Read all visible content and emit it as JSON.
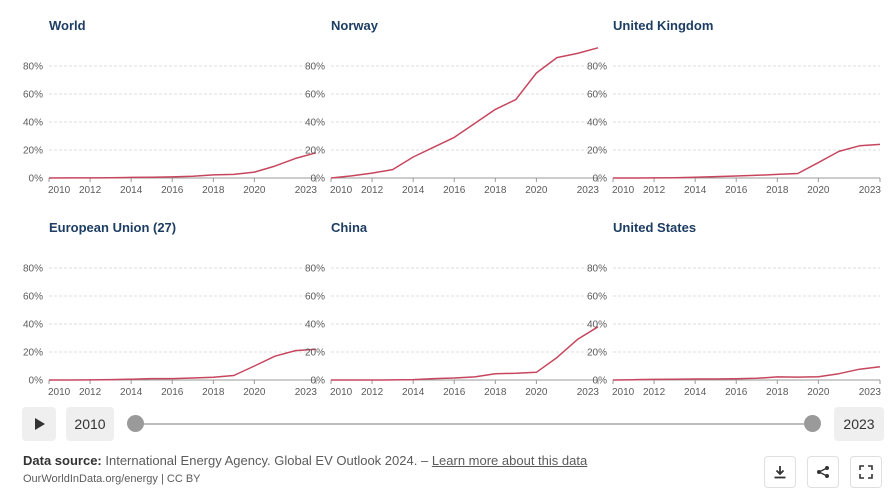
{
  "chart_data": {
    "type": "line",
    "layout": "small-multiples",
    "y_ticks": [
      "0%",
      "20%",
      "40%",
      "60%",
      "80%"
    ],
    "ylim": [
      0,
      90
    ],
    "x_ticks": [
      "2010",
      "2012",
      "2014",
      "2016",
      "2018",
      "2020",
      "2023"
    ],
    "xlim": [
      2010,
      2023
    ],
    "grid": true,
    "line_color": "#c6465e",
    "panels": [
      {
        "title": "World",
        "x": [
          2010,
          2011,
          2012,
          2013,
          2014,
          2015,
          2016,
          2017,
          2018,
          2019,
          2020,
          2021,
          2022,
          2023
        ],
        "values": [
          0,
          0.1,
          0.1,
          0.2,
          0.4,
          0.6,
          0.8,
          1.3,
          2.2,
          2.6,
          4.2,
          8.5,
          14,
          18
        ]
      },
      {
        "title": "Norway",
        "x": [
          2010,
          2011,
          2012,
          2013,
          2014,
          2015,
          2016,
          2017,
          2018,
          2019,
          2020,
          2021,
          2022,
          2023
        ],
        "values": [
          0,
          1.5,
          3.5,
          6,
          15,
          22,
          29,
          39,
          49,
          56,
          75,
          86,
          89,
          93
        ]
      },
      {
        "title": "United Kingdom",
        "x": [
          2010,
          2011,
          2012,
          2013,
          2014,
          2015,
          2016,
          2017,
          2018,
          2019,
          2020,
          2021,
          2022,
          2023
        ],
        "values": [
          0,
          0,
          0.1,
          0.2,
          0.6,
          1,
          1.4,
          1.9,
          2.6,
          3.2,
          11,
          19,
          23,
          24
        ]
      },
      {
        "title": "European Union (27)",
        "x": [
          2010,
          2011,
          2012,
          2013,
          2014,
          2015,
          2016,
          2017,
          2018,
          2019,
          2020,
          2021,
          2022,
          2023
        ],
        "values": [
          0,
          0,
          0.1,
          0.3,
          0.6,
          1,
          1,
          1.4,
          2,
          3.2,
          10,
          17,
          21,
          22
        ]
      },
      {
        "title": "China",
        "x": [
          2010,
          2011,
          2012,
          2013,
          2014,
          2015,
          2016,
          2017,
          2018,
          2019,
          2020,
          2021,
          2022,
          2023
        ],
        "values": [
          0,
          0,
          0,
          0.1,
          0.3,
          1,
          1.4,
          2.2,
          4.5,
          4.8,
          5.5,
          16,
          29,
          38
        ]
      },
      {
        "title": "United States",
        "x": [
          2010,
          2011,
          2012,
          2013,
          2014,
          2015,
          2016,
          2017,
          2018,
          2019,
          2020,
          2021,
          2022,
          2023
        ],
        "values": [
          0,
          0.2,
          0.4,
          0.6,
          0.7,
          0.7,
          0.9,
          1.2,
          2.2,
          2.1,
          2.3,
          4.5,
          7.7,
          9.5
        ]
      }
    ]
  },
  "timeline": {
    "start_year": "2010",
    "end_year": "2023"
  },
  "footer": {
    "source_label": "Data source:",
    "source_text": "International Energy Agency. Global EV Outlook 2024. –",
    "learn_more": "Learn more about this data",
    "attribution": "OurWorldInData.org/energy | CC BY"
  },
  "icons": {
    "play": "play-icon",
    "download": "download-icon",
    "share": "share-icon",
    "fullscreen": "fullscreen-icon"
  }
}
